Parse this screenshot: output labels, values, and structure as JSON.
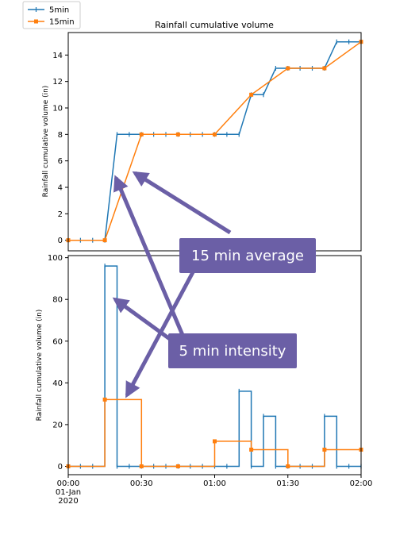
{
  "chart_data": [
    {
      "type": "line",
      "title": "Rainfall cumulative volume",
      "ylabel": "Rainfall cumulative volume (in)",
      "xlabel": "",
      "x_minutes": [
        0,
        120
      ],
      "ylim": [
        -0.8,
        15.7
      ],
      "yticks": [
        0,
        2,
        4,
        6,
        8,
        10,
        12,
        14
      ],
      "legend": {
        "placement": "top-left",
        "entries": [
          "5min",
          "15min"
        ]
      },
      "series": [
        {
          "name": "5min",
          "color": "#1f77b4",
          "marker": "vertical-tick",
          "step": false,
          "x": [
            0,
            5,
            10,
            15,
            20,
            25,
            30,
            35,
            40,
            45,
            50,
            55,
            60,
            65,
            70,
            75,
            80,
            85,
            90,
            95,
            100,
            105,
            110,
            115,
            120
          ],
          "y": [
            0,
            0,
            0,
            0,
            8,
            8,
            8,
            8,
            8,
            8,
            8,
            8,
            8,
            8,
            8,
            11,
            11,
            13,
            13,
            13,
            13,
            13,
            15,
            15,
            15
          ]
        },
        {
          "name": "15min",
          "color": "#ff7f0e",
          "marker": "x",
          "step": false,
          "x": [
            0,
            15,
            30,
            45,
            60,
            75,
            90,
            105,
            120
          ],
          "y": [
            0,
            0,
            8,
            8,
            8,
            11,
            13,
            13,
            15
          ]
        }
      ]
    },
    {
      "type": "line",
      "title": "",
      "ylabel": "Rainfall cumulative volume (in)",
      "xlabel": "",
      "x_minutes": [
        0,
        120
      ],
      "ylim": [
        -4,
        101
      ],
      "yticks": [
        0,
        20,
        40,
        60,
        80,
        100
      ],
      "xticks": [
        {
          "minute": 0,
          "lines": [
            "00:00",
            "01-Jan",
            "2020"
          ]
        },
        {
          "minute": 30,
          "lines": [
            "00:30"
          ]
        },
        {
          "minute": 60,
          "lines": [
            "01:00"
          ]
        },
        {
          "minute": 90,
          "lines": [
            "01:30"
          ]
        },
        {
          "minute": 120,
          "lines": [
            "02:00"
          ]
        }
      ],
      "series": [
        {
          "name": "5min",
          "color": "#1f77b4",
          "marker": "vertical-tick",
          "step": true,
          "x": [
            0,
            5,
            10,
            15,
            20,
            25,
            30,
            35,
            40,
            45,
            50,
            55,
            60,
            65,
            70,
            75,
            80,
            85,
            90,
            95,
            100,
            105,
            110,
            115,
            120
          ],
          "y": [
            0,
            0,
            0,
            96,
            0,
            0,
            0,
            0,
            0,
            0,
            0,
            0,
            0,
            0,
            36,
            0,
            24,
            0,
            0,
            0,
            0,
            24,
            0,
            0,
            0
          ]
        },
        {
          "name": "15min",
          "color": "#ff7f0e",
          "marker": "x",
          "step": true,
          "x": [
            0,
            15,
            30,
            45,
            60,
            75,
            90,
            105,
            120
          ],
          "y": [
            0,
            32,
            0,
            0,
            12,
            8,
            0,
            8,
            8
          ]
        }
      ]
    }
  ],
  "annotations": [
    {
      "text": "15 min average",
      "fill": "#6b5fa6",
      "arrow_color": "#6b5fa6"
    },
    {
      "text": "5 min intensity",
      "fill": "#6b5fa6",
      "arrow_color": "#6b5fa6"
    }
  ]
}
